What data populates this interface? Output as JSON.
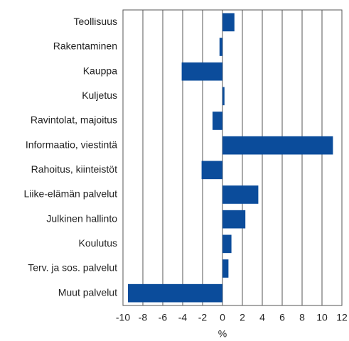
{
  "chart_data": {
    "type": "barh",
    "x_label": "%",
    "categories": [
      "Teollisuus",
      "Rakentaminen",
      "Kauppa",
      "Kuljetus",
      "Ravintolat, majoitus",
      "Informaatio, viestintä",
      "Rahoitus, kiinteistöt",
      "Liike-elämän palvelut",
      "Julkinen hallinto",
      "Koulutus",
      "Terv. ja sos. palvelut",
      "Muut palvelut"
    ],
    "values": [
      1.2,
      -0.3,
      -4.1,
      0.2,
      -1.0,
      11.1,
      -2.1,
      3.6,
      2.3,
      0.9,
      0.6,
      -9.5
    ],
    "color": "#0b4c9b",
    "xlim": [
      -10,
      12
    ],
    "xticks": [
      -10,
      -8,
      -6,
      -4,
      -2,
      0,
      2,
      4,
      6,
      8,
      10,
      12
    ],
    "grid": true
  }
}
